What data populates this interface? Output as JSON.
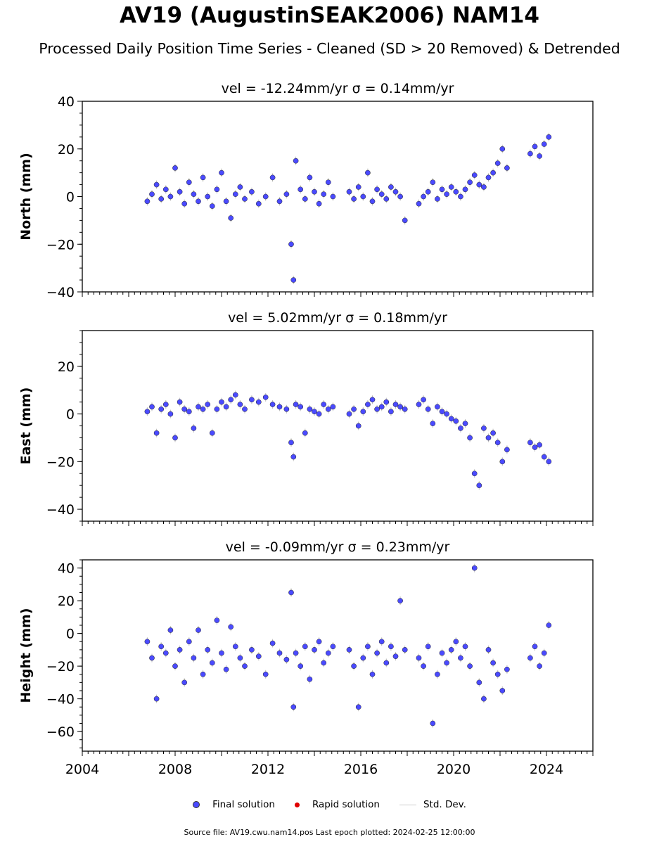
{
  "title": "AV19 (AugustinSEAK2006) NAM14",
  "subtitle": "Processed Daily Position Time Series - Cleaned (SD > 20 Removed) & Detrended",
  "legend": {
    "final_label": "Final solution",
    "rapid_label": "Rapid solution",
    "sd_label": "Std. Dev."
  },
  "footer": "Source file: AV19.cwu.nam14.pos  Last epoch plotted: 2024-02-25 12:00:00",
  "colors": {
    "final_fill": "#4a4aff",
    "final_edge": "#222222",
    "rapid": "#e00000",
    "stddev": "#bdbdbd"
  },
  "chart_data": [
    {
      "type": "scatter",
      "title": "vel = -12.24mm/yr   σ = 0.14mm/yr",
      "ylabel": "North (mm)",
      "xlim": [
        2004,
        2026
      ],
      "ylim": [
        -40,
        40
      ],
      "yticks": [
        -40,
        -20,
        0,
        20,
        40
      ],
      "xticks": [],
      "series": [
        {
          "name": "Final solution",
          "x": [
            2006.8,
            2007.0,
            2007.2,
            2007.4,
            2007.6,
            2007.8,
            2008.0,
            2008.2,
            2008.4,
            2008.6,
            2008.8,
            2009.0,
            2009.2,
            2009.4,
            2009.6,
            2009.8,
            2010.0,
            2010.2,
            2010.4,
            2010.6,
            2010.8,
            2011.0,
            2011.3,
            2011.6,
            2011.9,
            2012.2,
            2012.5,
            2012.8,
            2013.0,
            2013.1,
            2013.2,
            2013.4,
            2013.6,
            2013.8,
            2014.0,
            2014.2,
            2014.4,
            2014.6,
            2014.8,
            2015.5,
            2015.7,
            2015.9,
            2016.1,
            2016.3,
            2016.5,
            2016.7,
            2016.9,
            2017.1,
            2017.3,
            2017.5,
            2017.7,
            2017.9,
            2018.5,
            2018.7,
            2018.9,
            2019.1,
            2019.3,
            2019.5,
            2019.7,
            2019.9,
            2020.1,
            2020.3,
            2020.5,
            2020.7,
            2020.9,
            2021.1,
            2021.3,
            2021.5,
            2021.7,
            2021.9,
            2022.1,
            2022.3,
            2023.3,
            2023.5,
            2023.7,
            2023.9,
            2024.1
          ],
          "y": [
            -2,
            1,
            5,
            -1,
            3,
            0,
            12,
            2,
            -3,
            6,
            1,
            -2,
            8,
            0,
            -4,
            3,
            10,
            -2,
            -9,
            1,
            4,
            -1,
            2,
            -3,
            0,
            8,
            -2,
            1,
            -20,
            -35,
            15,
            3,
            -1,
            8,
            2,
            -3,
            1,
            6,
            0,
            2,
            -1,
            4,
            0,
            10,
            -2,
            3,
            1,
            -1,
            4,
            2,
            0,
            -10,
            -3,
            0,
            2,
            6,
            -1,
            3,
            1,
            4,
            2,
            0,
            3,
            6,
            9,
            5,
            4,
            8,
            10,
            14,
            20,
            12,
            18,
            21,
            17,
            22,
            25
          ]
        }
      ]
    },
    {
      "type": "scatter",
      "title": "vel = 5.02mm/yr   σ = 0.18mm/yr",
      "ylabel": "East (mm)",
      "xlim": [
        2004,
        2026
      ],
      "ylim": [
        -45,
        35
      ],
      "yticks": [
        -40,
        -20,
        0,
        20
      ],
      "xticks": [],
      "series": [
        {
          "name": "Final solution",
          "x": [
            2006.8,
            2007.0,
            2007.2,
            2007.4,
            2007.6,
            2007.8,
            2008.0,
            2008.2,
            2008.4,
            2008.6,
            2008.8,
            2009.0,
            2009.2,
            2009.4,
            2009.6,
            2009.8,
            2010.0,
            2010.2,
            2010.4,
            2010.6,
            2010.8,
            2011.0,
            2011.3,
            2011.6,
            2011.9,
            2012.2,
            2012.5,
            2012.8,
            2013.0,
            2013.1,
            2013.2,
            2013.4,
            2013.6,
            2013.8,
            2014.0,
            2014.2,
            2014.4,
            2014.6,
            2014.8,
            2015.5,
            2015.7,
            2015.9,
            2016.1,
            2016.3,
            2016.5,
            2016.7,
            2016.9,
            2017.1,
            2017.3,
            2017.5,
            2017.7,
            2017.9,
            2018.5,
            2018.7,
            2018.9,
            2019.1,
            2019.3,
            2019.5,
            2019.7,
            2019.9,
            2020.1,
            2020.3,
            2020.5,
            2020.7,
            2020.9,
            2021.1,
            2021.3,
            2021.5,
            2021.7,
            2021.9,
            2022.1,
            2022.3,
            2023.3,
            2023.5,
            2023.7,
            2023.9,
            2024.1
          ],
          "y": [
            1,
            3,
            -8,
            2,
            4,
            0,
            -10,
            5,
            2,
            1,
            -6,
            3,
            2,
            4,
            -8,
            2,
            5,
            3,
            6,
            8,
            4,
            2,
            6,
            5,
            7,
            4,
            3,
            2,
            -12,
            -18,
            4,
            3,
            -8,
            2,
            1,
            0,
            4,
            2,
            3,
            0,
            2,
            -5,
            1,
            4,
            6,
            2,
            3,
            5,
            1,
            4,
            3,
            2,
            4,
            6,
            2,
            -4,
            3,
            1,
            0,
            -2,
            -3,
            -6,
            -4,
            -10,
            -25,
            -30,
            -6,
            -10,
            -8,
            -12,
            -20,
            -15,
            -12,
            -14,
            -13,
            -18,
            -20
          ]
        }
      ]
    },
    {
      "type": "scatter",
      "title": "vel = -0.09mm/yr   σ = 0.23mm/yr",
      "ylabel": "Height (mm)",
      "xlim": [
        2004,
        2026
      ],
      "ylim": [
        -72,
        45
      ],
      "yticks": [
        -60,
        -40,
        -20,
        0,
        20,
        40
      ],
      "xticks": [
        "2004",
        "2008",
        "2012",
        "2016",
        "2020",
        "2024"
      ],
      "xtick_values": [
        2004,
        2008,
        2012,
        2016,
        2020,
        2024
      ],
      "series": [
        {
          "name": "Final solution",
          "x": [
            2006.8,
            2007.0,
            2007.2,
            2007.4,
            2007.6,
            2007.8,
            2008.0,
            2008.2,
            2008.4,
            2008.6,
            2008.8,
            2009.0,
            2009.2,
            2009.4,
            2009.6,
            2009.8,
            2010.0,
            2010.2,
            2010.4,
            2010.6,
            2010.8,
            2011.0,
            2011.3,
            2011.6,
            2011.9,
            2012.2,
            2012.5,
            2012.8,
            2013.0,
            2013.1,
            2013.2,
            2013.4,
            2013.6,
            2013.8,
            2014.0,
            2014.2,
            2014.4,
            2014.6,
            2014.8,
            2015.5,
            2015.7,
            2015.9,
            2016.1,
            2016.3,
            2016.5,
            2016.7,
            2016.9,
            2017.1,
            2017.3,
            2017.5,
            2017.7,
            2017.9,
            2018.5,
            2018.7,
            2018.9,
            2019.1,
            2019.3,
            2019.5,
            2019.7,
            2019.9,
            2020.1,
            2020.3,
            2020.5,
            2020.7,
            2020.9,
            2021.1,
            2021.3,
            2021.5,
            2021.7,
            2021.9,
            2022.1,
            2022.3,
            2023.3,
            2023.5,
            2023.7,
            2023.9,
            2024.1
          ],
          "y": [
            -5,
            -15,
            -40,
            -8,
            -12,
            2,
            -20,
            -10,
            -30,
            -5,
            -15,
            2,
            -25,
            -10,
            -18,
            8,
            -12,
            -22,
            4,
            -8,
            -15,
            -20,
            -10,
            -14,
            -25,
            -6,
            -12,
            -16,
            25,
            -45,
            -12,
            -20,
            -8,
            -28,
            -10,
            -5,
            -18,
            -12,
            -8,
            -10,
            -20,
            -45,
            -15,
            -8,
            -25,
            -12,
            -5,
            -18,
            -8,
            -14,
            20,
            -10,
            -15,
            -20,
            -8,
            -55,
            -25,
            -12,
            -18,
            -10,
            -5,
            -15,
            -8,
            -20,
            40,
            -30,
            -40,
            -10,
            -18,
            -25,
            -35,
            -22,
            -15,
            -8,
            -20,
            -12,
            5
          ]
        }
      ]
    }
  ]
}
